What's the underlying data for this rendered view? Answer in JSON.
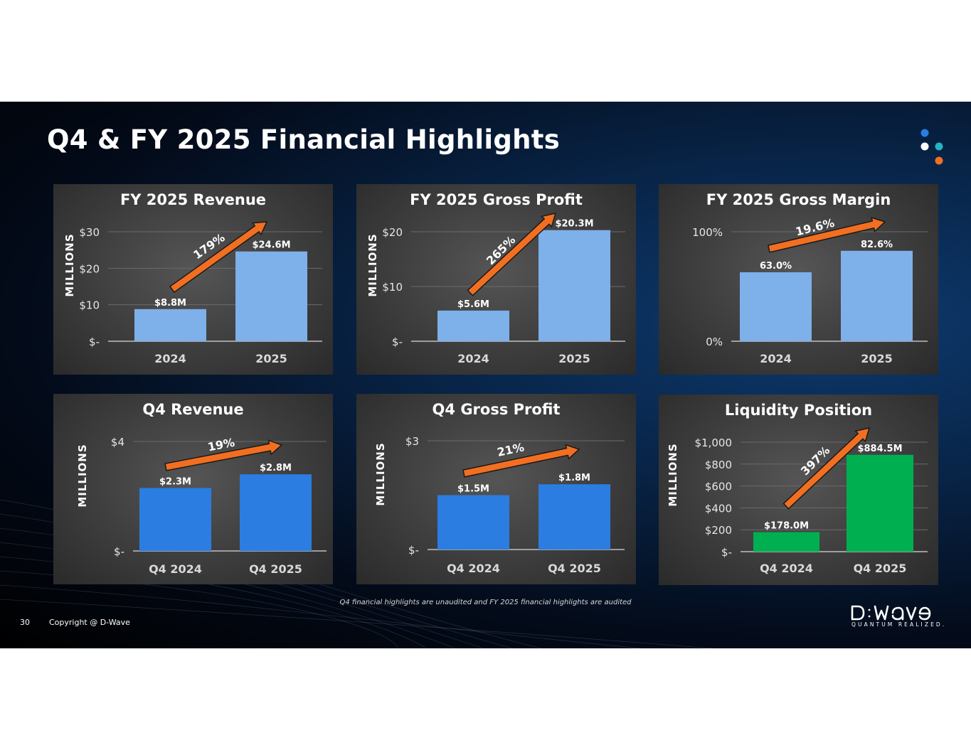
{
  "slide": {
    "title": "Q4 & FY 2025 Financial Highlights",
    "footnote": "Q4 financial highlights are unaudited and FY 2025 financial highlights are audited",
    "page_number": "30",
    "copyright": "Copyright @ D-Wave",
    "logo_text": "D-Wave",
    "logo_tagline": "QUANTUM REALIZED.",
    "colors": {
      "background": "#061a36",
      "panel": "#3d3d3d",
      "arrow": "#f26f21",
      "bar_light": "#7eb0ea",
      "bar_blue": "#2b7de1",
      "bar_green": "#00b050",
      "dot_blue": "#2b7de1",
      "dot_white": "#ffffff",
      "dot_teal": "#21b6c1",
      "dot_orange": "#f26f21"
    }
  },
  "chart_data": [
    {
      "id": "fy-revenue",
      "type": "bar",
      "title": "FY 2025 Revenue",
      "ylabel": "MILLIONS",
      "categories": [
        "2024",
        "2025"
      ],
      "values": [
        8.8,
        24.6
      ],
      "value_labels": [
        "$8.8M",
        "$24.6M"
      ],
      "ylim": [
        0,
        30
      ],
      "yticks": [
        0,
        10,
        20,
        30
      ],
      "ytick_labels": [
        "$-",
        "$10",
        "$20",
        "$30"
      ],
      "bar_color": "#7eb0ea",
      "grid": true,
      "annotation": "179%"
    },
    {
      "id": "fy-gross-profit",
      "type": "bar",
      "title": "FY 2025 Gross Profit",
      "ylabel": "MILLIONS",
      "categories": [
        "2024",
        "2025"
      ],
      "values": [
        5.6,
        20.3
      ],
      "value_labels": [
        "$5.6M",
        "$20.3M"
      ],
      "ylim": [
        0,
        20
      ],
      "yticks": [
        0,
        10,
        20
      ],
      "ytick_labels": [
        "$-",
        "$10",
        "$20"
      ],
      "bar_color": "#7eb0ea",
      "grid": true,
      "annotation": "265%"
    },
    {
      "id": "fy-gross-margin",
      "type": "bar",
      "title": "FY 2025 Gross Margin",
      "ylabel": "",
      "categories": [
        "2024",
        "2025"
      ],
      "values": [
        63.0,
        82.6
      ],
      "value_labels": [
        "63.0%",
        "82.6%"
      ],
      "ylim": [
        0,
        100
      ],
      "yticks": [
        0,
        100
      ],
      "ytick_labels": [
        "0%",
        "100%"
      ],
      "bar_color": "#7eb0ea",
      "grid": true,
      "annotation": "19.6%"
    },
    {
      "id": "q4-revenue",
      "type": "bar",
      "title": "Q4 Revenue",
      "ylabel": "MILLIONS",
      "categories": [
        "Q4 2024",
        "Q4 2025"
      ],
      "values": [
        2.3,
        2.8
      ],
      "value_labels": [
        "$2.3M",
        "$2.8M"
      ],
      "ylim": [
        0,
        4
      ],
      "yticks": [
        0,
        4
      ],
      "ytick_labels": [
        "$-",
        "$4"
      ],
      "bar_color": "#2b7de1",
      "grid": true,
      "annotation": "19%"
    },
    {
      "id": "q4-gross-profit",
      "type": "bar",
      "title": "Q4 Gross Profit",
      "ylabel": "MILLIONS",
      "categories": [
        "Q4 2024",
        "Q4 2025"
      ],
      "values": [
        1.5,
        1.8
      ],
      "value_labels": [
        "$1.5M",
        "$1.8M"
      ],
      "ylim": [
        0,
        3
      ],
      "yticks": [
        0,
        3
      ],
      "ytick_labels": [
        "$-",
        "$3"
      ],
      "bar_color": "#2b7de1",
      "grid": true,
      "annotation": "21%"
    },
    {
      "id": "liquidity",
      "type": "bar",
      "title": "Liquidity Position",
      "ylabel": "MILLIONS",
      "categories": [
        "Q4 2024",
        "Q4 2025"
      ],
      "values": [
        178.0,
        884.5
      ],
      "value_labels": [
        "$178.0M",
        "$884.5M"
      ],
      "ylim": [
        0,
        1000
      ],
      "yticks": [
        0,
        200,
        400,
        600,
        800,
        1000
      ],
      "ytick_labels": [
        "$-",
        "$200",
        "$400",
        "$600",
        "$800",
        "$1,000"
      ],
      "bar_color": "#00b050",
      "grid": true,
      "annotation": "397%"
    }
  ]
}
